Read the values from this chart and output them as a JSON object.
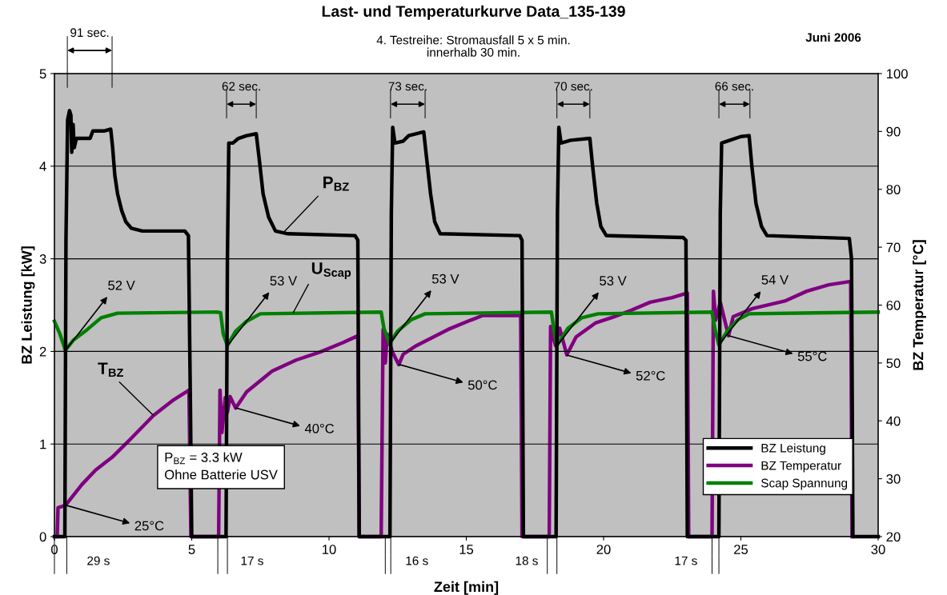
{
  "chart_data": {
    "type": "line",
    "title": "Last- und Temperaturkurve Data_135-139",
    "subtitle": "4. Testreihe: Stromausfall 5 x 5 min.\ninnerhalb 30 min.",
    "xlabel": "Zeit [min]",
    "ylabel": "BZ Leistung [kW]",
    "y2label": "BZ Temperatur [°C]",
    "xlim": [
      0,
      30
    ],
    "xticks": [
      0,
      5,
      10,
      15,
      20,
      25,
      30
    ],
    "ylim": [
      0,
      5
    ],
    "yticks": [
      0,
      1,
      2,
      3,
      4,
      5
    ],
    "y2lim": [
      20,
      100
    ],
    "y2ticks": [
      20,
      30,
      40,
      50,
      60,
      70,
      80,
      90,
      100
    ],
    "grid": "y",
    "legend": "bottom right",
    "marker": "none",
    "line_style": "solid",
    "series": [
      {
        "name": "BZ Leistung",
        "color": "#000000",
        "x": [
          0,
          0.38,
          0.42,
          0.48,
          0.55,
          0.6,
          0.63,
          0.68,
          0.72,
          0.8,
          1.3,
          1.4,
          1.8,
          2.05,
          2.12,
          2.2,
          2.3,
          2.45,
          2.6,
          2.8,
          3.2,
          4.75,
          4.88,
          4.95,
          5.0,
          6.25,
          6.3,
          6.35,
          6.5,
          6.7,
          7.0,
          7.35,
          7.45,
          7.6,
          7.8,
          8.05,
          8.5,
          10.95,
          11.05,
          11.1,
          12.22,
          12.27,
          12.32,
          12.4,
          12.7,
          12.9,
          13.45,
          13.55,
          13.7,
          13.85,
          14.05,
          16.95,
          17.03,
          17.08,
          18.27,
          18.32,
          18.37,
          18.45,
          18.8,
          19.5,
          19.6,
          19.75,
          19.9,
          20.1,
          22.9,
          23.0,
          23.05,
          24.2,
          24.25,
          24.3,
          24.6,
          25.0,
          25.3,
          25.4,
          25.55,
          25.75,
          25.95,
          28.95,
          29.03,
          29.08,
          30
        ],
        "values": [
          0,
          0,
          3.2,
          4.5,
          4.6,
          4.55,
          4.15,
          4.45,
          4.2,
          4.3,
          4.3,
          4.38,
          4.38,
          4.4,
          4.2,
          3.9,
          3.7,
          3.52,
          3.4,
          3.33,
          3.3,
          3.3,
          3.25,
          1.5,
          0,
          0,
          3.0,
          4.25,
          4.25,
          4.3,
          4.33,
          4.35,
          4.1,
          3.7,
          3.45,
          3.3,
          3.27,
          3.25,
          3.2,
          0,
          0,
          3.5,
          4.42,
          4.25,
          4.27,
          4.33,
          4.37,
          4.1,
          3.7,
          3.4,
          3.27,
          3.25,
          3.2,
          0,
          0,
          3.5,
          4.42,
          4.25,
          4.28,
          4.3,
          4.0,
          3.6,
          3.35,
          3.25,
          3.23,
          3.2,
          0,
          0,
          3.5,
          4.25,
          4.28,
          4.32,
          4.33,
          4.0,
          3.6,
          3.35,
          3.25,
          3.22,
          3.0,
          0,
          0
        ]
      },
      {
        "name": "BZ Temperatur",
        "color": "#800080",
        "axis": "y2",
        "x": [
          0.1,
          0.13,
          0.4,
          0.5,
          1.0,
          1.5,
          2.1,
          2.8,
          3.6,
          4.3,
          4.9,
          4.97,
          5.98,
          6.03,
          6.1,
          6.22,
          6.3,
          6.4,
          6.6,
          7.0,
          7.93,
          8.8,
          9.68,
          10.5,
          11.05,
          11.1,
          11.9,
          11.97,
          12.05,
          12.12,
          12.3,
          12.54,
          12.7,
          13.18,
          14.34,
          15.16,
          15.6,
          16.98,
          17.03,
          18.02,
          18.07,
          18.25,
          18.4,
          18.66,
          19.0,
          19.7,
          20.4,
          21.0,
          21.7,
          22.5,
          23.05,
          23.1,
          23.95,
          24.0,
          24.08,
          24.25,
          24.55,
          24.72,
          25.42,
          26.6,
          27.4,
          28.2,
          29.0,
          29.05
        ],
        "values": [
          20,
          25,
          25.4,
          26,
          29,
          31.5,
          33.7,
          37,
          40.9,
          43.5,
          45.3,
          20,
          20,
          45.3,
          38,
          44,
          41.5,
          44.2,
          42.2,
          45,
          48.6,
          50.5,
          51.9,
          53.5,
          54.7,
          20,
          20,
          55.8,
          50,
          55,
          52,
          49.7,
          51.5,
          53,
          55.8,
          57.4,
          58.2,
          58.2,
          20,
          20,
          56.3,
          53,
          56,
          51.4,
          54.5,
          56.9,
          58,
          59.1,
          60.5,
          61.3,
          62.1,
          20,
          20,
          62.4,
          57.4,
          60.5,
          54.7,
          58,
          59.4,
          60.7,
          62.4,
          63.5,
          64.1,
          20
        ]
      },
      {
        "name": "Scap Spannung",
        "color": "#008000",
        "axis": "y2",
        "x": [
          0,
          0.2,
          0.4,
          0.7,
          1.2,
          1.7,
          2.3,
          5.9,
          6.05,
          6.15,
          6.3,
          6.6,
          7.0,
          7.5,
          11.9,
          12.0,
          12.2,
          12.5,
          13.0,
          13.5,
          18.1,
          18.2,
          18.3,
          18.7,
          19.2,
          19.8,
          23.95,
          24.05,
          24.2,
          24.5,
          24.9,
          25.3,
          30
        ],
        "values": [
          57.2,
          55,
          52.2,
          54,
          55.8,
          57.8,
          58.6,
          58.8,
          58.7,
          55,
          53.0,
          55.5,
          57.2,
          58.5,
          58.8,
          56,
          53.3,
          55.5,
          57.5,
          58.5,
          58.8,
          55.5,
          53.0,
          56,
          57.8,
          58.5,
          58.8,
          56,
          53.1,
          55.5,
          57.5,
          58.5,
          58.8
        ]
      }
    ],
    "annotations": [
      "91 sec.",
      "62 sec.",
      "73 sec.",
      "70 sec.",
      "66 sec.",
      {
        "text": "52 V",
        "x": 0.4,
        "y": 2.01
      },
      {
        "text": "53 V",
        "x": 6.3,
        "y": 2.06
      },
      {
        "text": "53 V",
        "x": 12.2,
        "y": 2.08
      },
      {
        "text": "53 V",
        "x": 18.3,
        "y": 2.06
      },
      {
        "text": "54 V",
        "x": 24.2,
        "y": 2.07
      },
      {
        "text": "25°C",
        "x": 0.4,
        "y": 0.34
      },
      {
        "text": "40°C",
        "x": 6.6,
        "y": 1.39
      },
      {
        "text": "50°C",
        "x": 12.54,
        "y": 1.86
      },
      {
        "text": "52°C",
        "x": 18.66,
        "y": 1.96
      },
      {
        "text": "55°C",
        "x": 24.55,
        "y": 2.17
      },
      {
        "text": "P$_{BZ}$",
        "x": 8.3,
        "y": 3.27
      },
      {
        "text": "U$_{Scap}$",
        "x": 8.7,
        "y": 2.42
      },
      {
        "text": "T$_{BZ}$",
        "x": 3.6,
        "y": 1.31
      },
      "P$_{BZ}$ = 3.3 kW\nOhne Batterie USV",
      "29 s",
      "17 s",
      "16 s",
      "18 s",
      "17 s",
      "Juni 2006"
    ]
  }
}
